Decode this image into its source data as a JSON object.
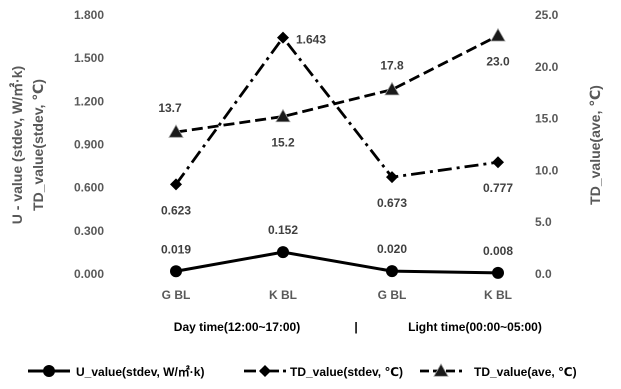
{
  "chart_data": {
    "type": "line",
    "categories": [
      "G BL",
      "K BL",
      "G BL",
      "K BL"
    ],
    "periods": [
      "Day time(12:00~17:00)",
      "|",
      "Light time(00:00~05:00)"
    ],
    "ylabel_left_1": "U - value (stdev, W/㎡·k)",
    "ylabel_left_2": "TD_value(stdev, ℃)",
    "ylabel_right": "TD_value(ave, ℃)",
    "ylim_left": [
      0,
      1.8
    ],
    "yticks_left": [
      "0.000",
      "0.300",
      "0.600",
      "0.900",
      "1.200",
      "1.500",
      "1.800"
    ],
    "ylim_right": [
      0,
      25
    ],
    "yticks_right": [
      "0.0",
      "5.0",
      "10.0",
      "15.0",
      "20.0",
      "25.0"
    ],
    "grid": false,
    "legend_position": "bottom",
    "series": [
      {
        "name": "U_value(stdev, W/㎡·k)",
        "axis": "left",
        "values": [
          0.019,
          0.152,
          0.02,
          0.008
        ],
        "labels": [
          "0.019",
          "0.152",
          "0.020",
          "0.008"
        ],
        "marker": "circle",
        "dash": "solid",
        "color": "#000000"
      },
      {
        "name": "TD_value(stdev, ℃)",
        "axis": "left",
        "values": [
          0.623,
          1.643,
          0.673,
          0.777
        ],
        "labels": [
          "0.623",
          "1.643",
          "0.673",
          "0.777"
        ],
        "marker": "diamond",
        "dash": "dashdot",
        "color": "#000000"
      },
      {
        "name": "TD_value(ave, ℃)",
        "axis": "right",
        "values": [
          13.7,
          15.2,
          17.8,
          23.0
        ],
        "labels": [
          "13.7",
          "15.2",
          "17.8",
          "23.0"
        ],
        "marker": "triangle",
        "dash": "dash",
        "color": "#000000"
      }
    ]
  }
}
